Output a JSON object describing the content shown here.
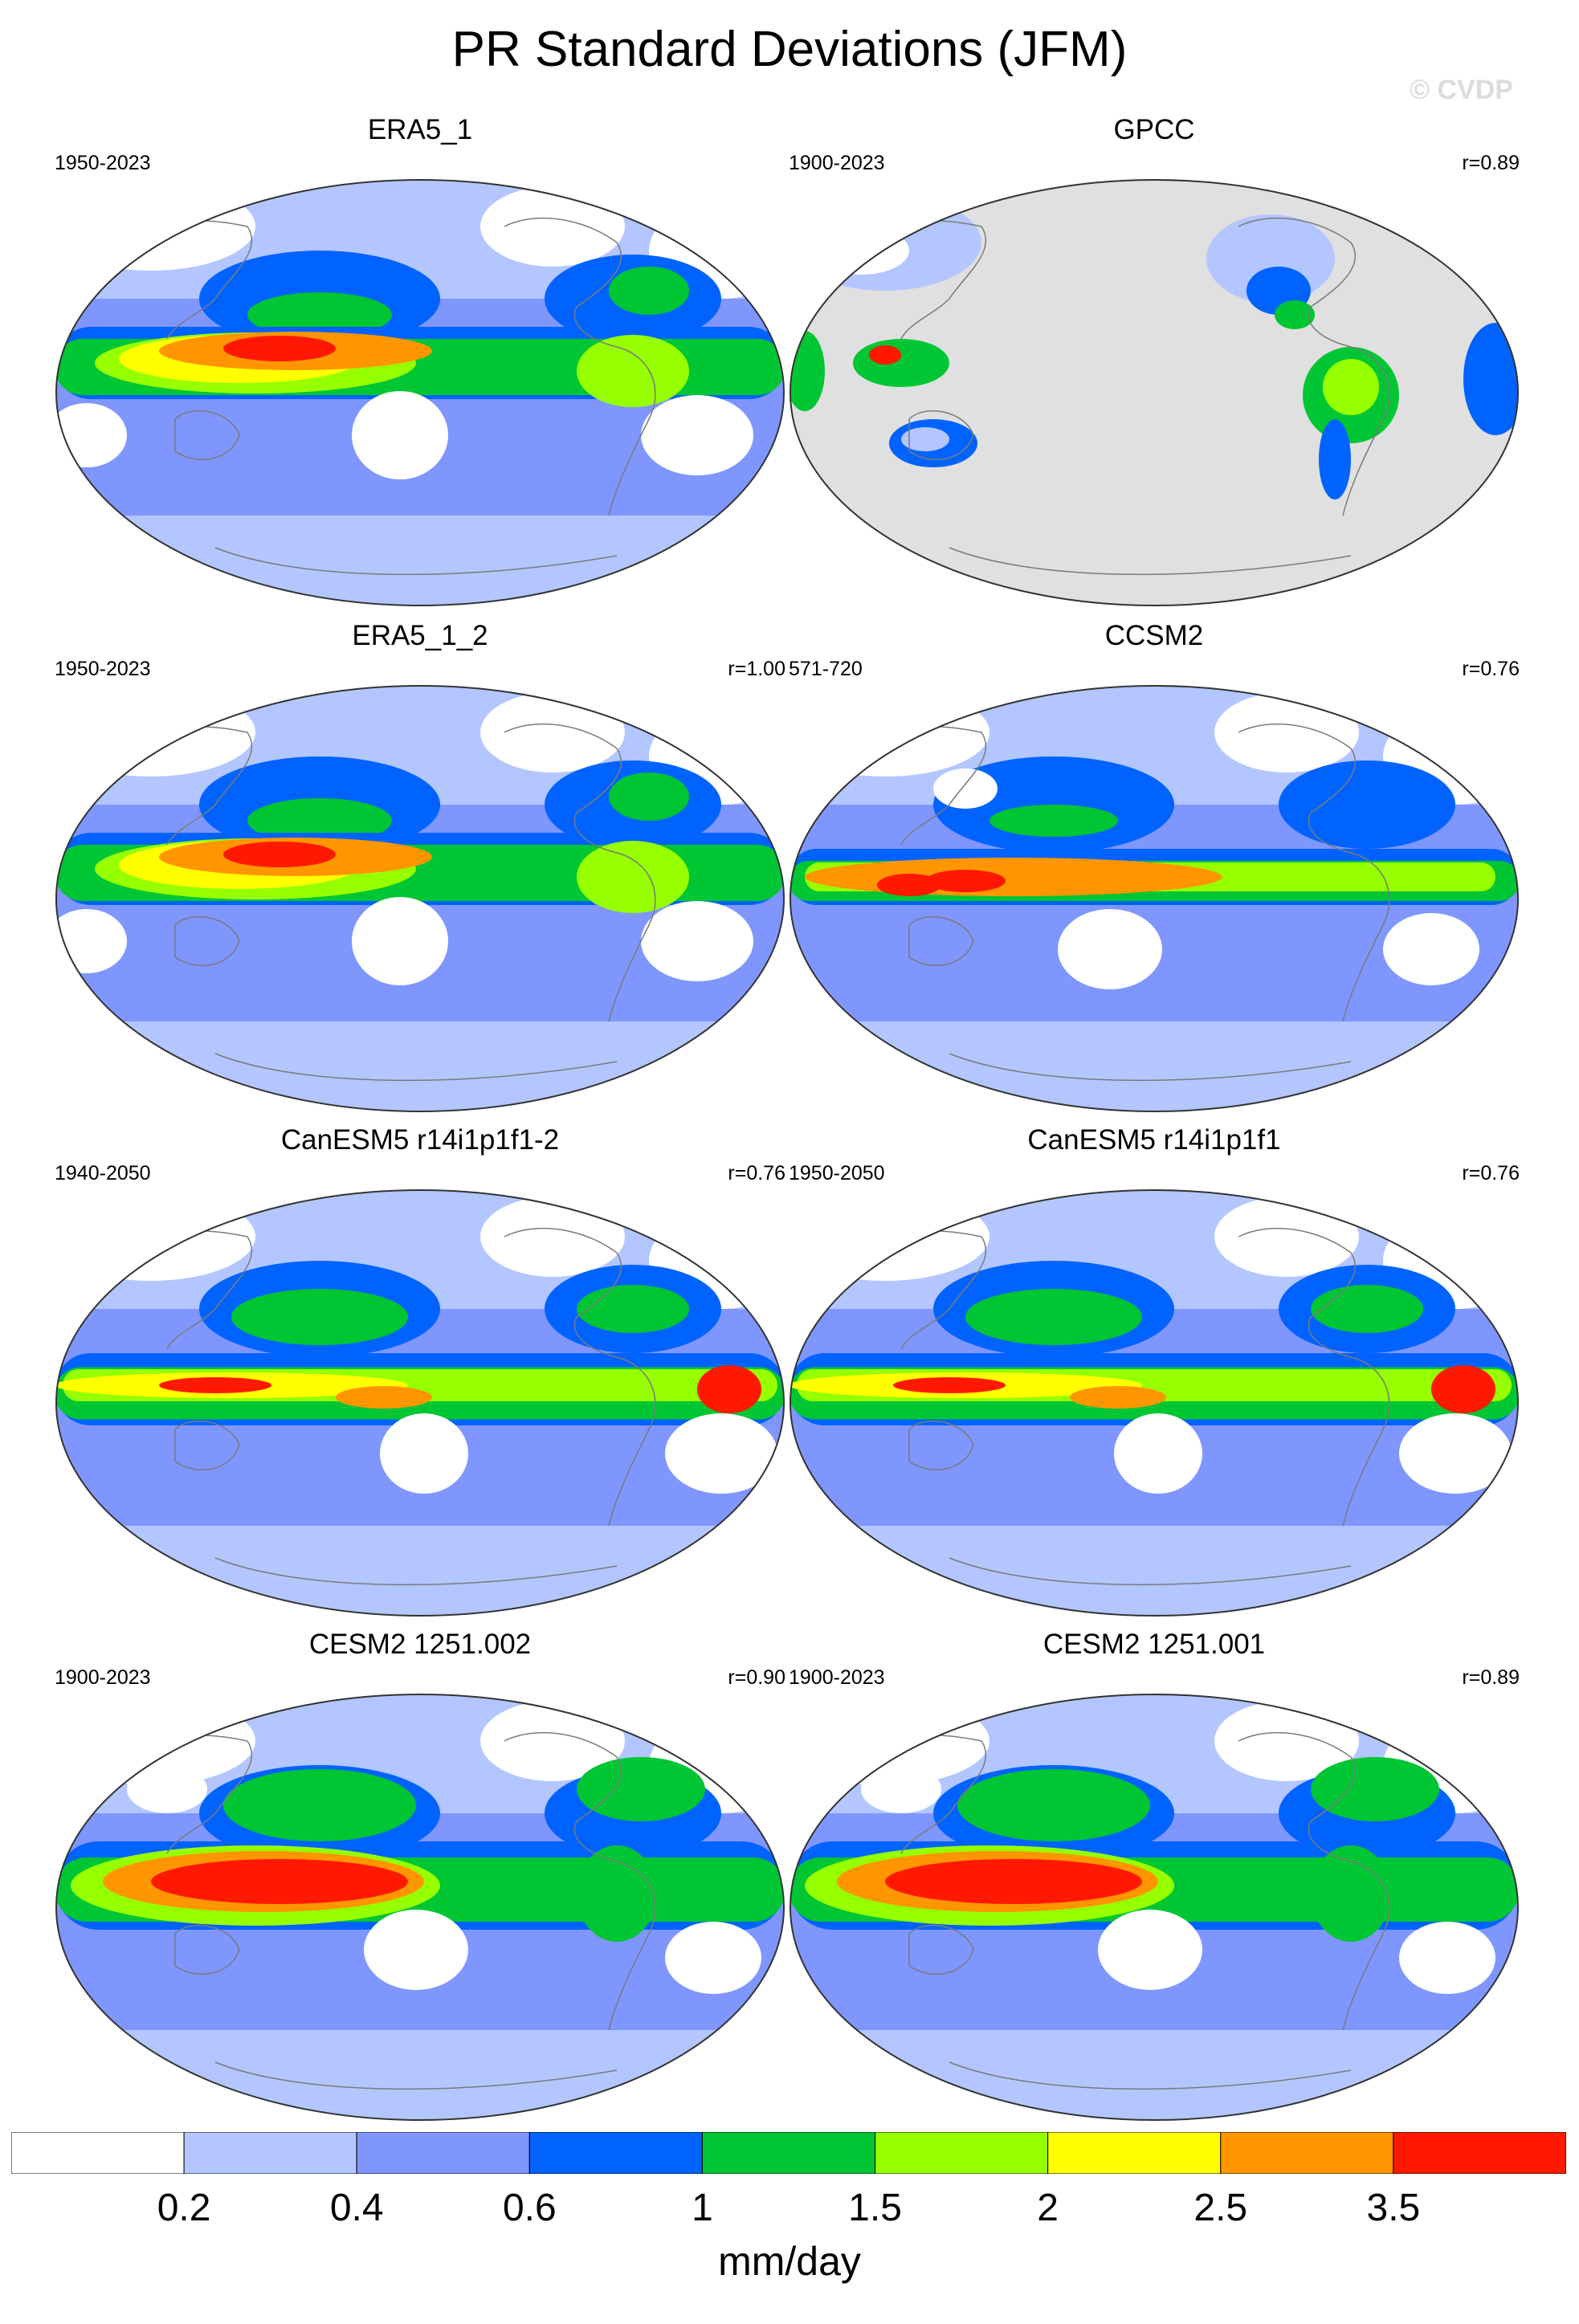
{
  "title": "PR Standard Deviations (JFM)",
  "watermark": "© CVDP",
  "colorbar": {
    "units": "mm/day",
    "labels": [
      "0.2",
      "0.4",
      "0.6",
      "1",
      "1.5",
      "2",
      "2.5",
      "3.5"
    ],
    "colors": [
      "#ffffff",
      "#b3c6ff",
      "#7f96ff",
      "#0063ff",
      "#00c633",
      "#96ff00",
      "#ffff00",
      "#ff9600",
      "#ff1900"
    ]
  },
  "map_colors": {
    "ocean_missing": "#e0e0e0",
    "coastline": "#7a7a7a",
    "border": "#333333"
  },
  "panels": [
    {
      "title": "ERA5_1",
      "years": "1950-2023",
      "r": "",
      "masked": false,
      "pattern": "era5"
    },
    {
      "title": "GPCC",
      "years": "1900-2023",
      "r": "r=0.89",
      "masked": true,
      "pattern": "gpcc"
    },
    {
      "title": "ERA5_1_2",
      "years": "1950-2023",
      "r": "r=1.00",
      "masked": false,
      "pattern": "era5"
    },
    {
      "title": "CCSM2",
      "years": "571-720",
      "r": "r=0.76",
      "masked": false,
      "pattern": "ccsm"
    },
    {
      "title": "CanESM5 r14i1p1f1-2",
      "years": "1940-2050",
      "r": "r=0.76",
      "masked": false,
      "pattern": "canesm"
    },
    {
      "title": "CanESM5 r14i1p1f1",
      "years": "1950-2050",
      "r": "r=0.76",
      "masked": false,
      "pattern": "canesm"
    },
    {
      "title": "CESM2 1251.002",
      "years": "1900-2023",
      "r": "r=0.90",
      "masked": false,
      "pattern": "cesm"
    },
    {
      "title": "CESM2 1251.001",
      "years": "1900-2023",
      "r": "r=0.89",
      "masked": false,
      "pattern": "cesm"
    }
  ]
}
